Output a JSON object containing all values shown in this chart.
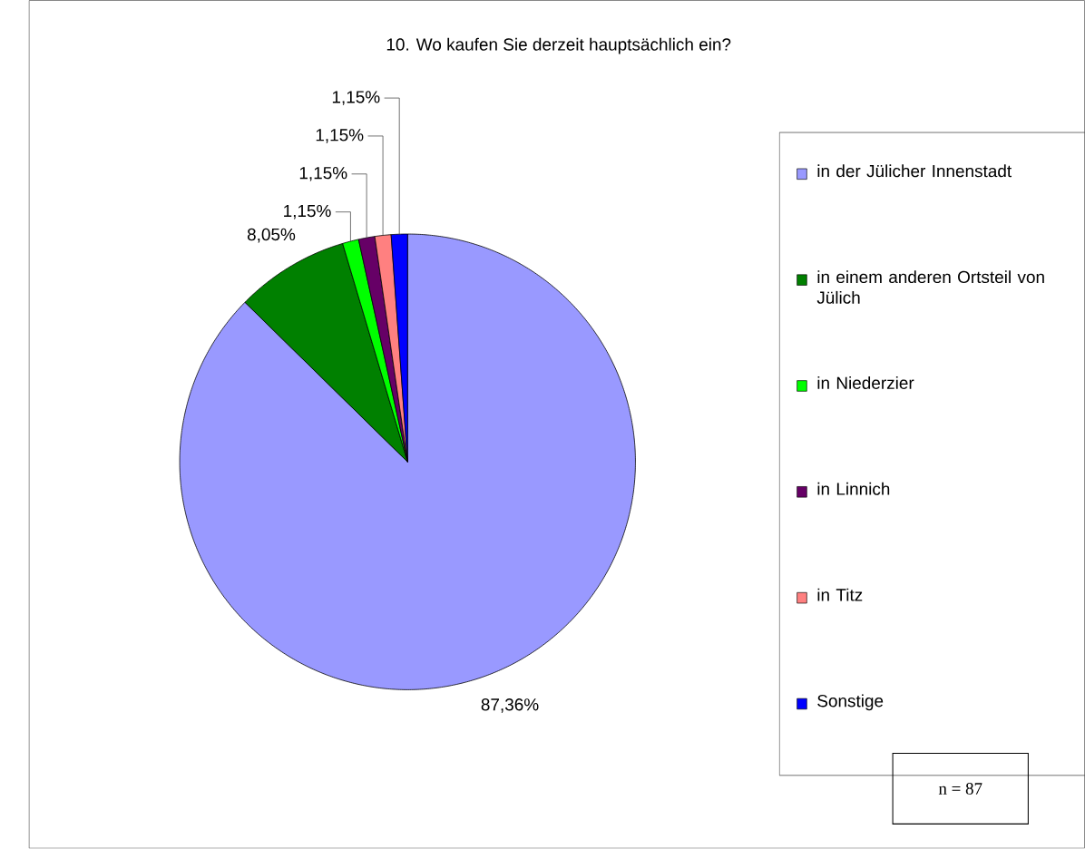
{
  "chart_data": {
    "type": "pie",
    "title": "10. Wo kaufen Sie derzeit hauptsächlich ein?",
    "categories": [
      "in der Jülicher Innenstadt",
      "in einem anderen Ortsteil von Jülich",
      "in Niederzier",
      "in Linnich",
      "in Titz",
      "Sonstige"
    ],
    "values": [
      87.36,
      8.05,
      1.15,
      1.15,
      1.15,
      1.15
    ],
    "value_labels": [
      "87,36%",
      "8,05%",
      "1,15%",
      "1,15%",
      "1,15%",
      "1,15%"
    ],
    "colors": [
      "#9999ff",
      "#008000",
      "#00ff00",
      "#660066",
      "#ff8080",
      "#0000ff"
    ],
    "legend": "right",
    "annotations": [
      "n = 87"
    ]
  }
}
